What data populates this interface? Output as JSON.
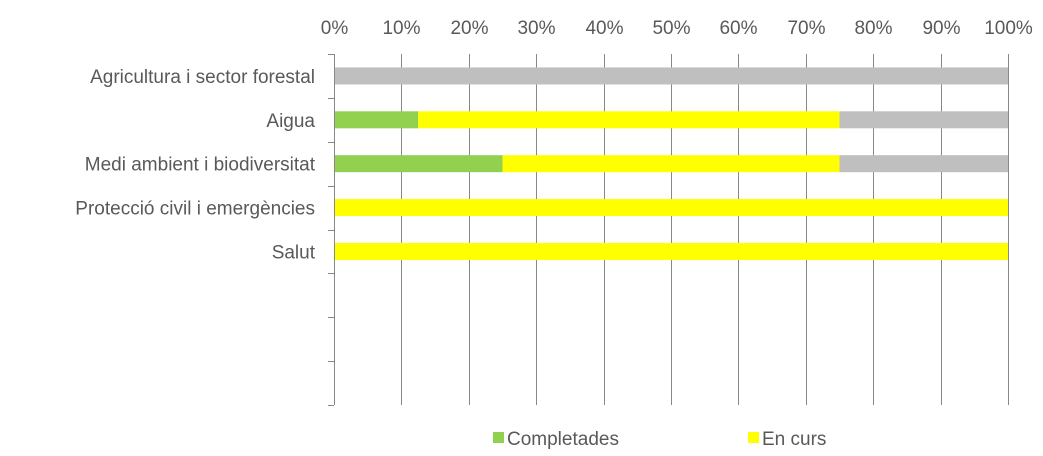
{
  "chart_data": {
    "type": "bar",
    "orientation": "horizontal",
    "stacked": "percent",
    "title": "",
    "xlabel": "",
    "ylabel": "",
    "xlim": [
      0,
      100
    ],
    "x_tick_labels": [
      "0%",
      "10%",
      "20%",
      "30%",
      "40%",
      "50%",
      "60%",
      "70%",
      "80%",
      "90%",
      "100%"
    ],
    "categories": [
      "Agricultura i sector forestal",
      "Aigua",
      "Medi ambient i biodiversitat",
      "Protecció civil i emergències",
      "Salut",
      "",
      "",
      ""
    ],
    "series": [
      {
        "name": "Completades",
        "color": "#92D050",
        "values": [
          0,
          12.5,
          25,
          0,
          0,
          null,
          null,
          null
        ]
      },
      {
        "name": "En curs",
        "color": "#FFFF00",
        "values": [
          0,
          62.5,
          50,
          100,
          100,
          null,
          null,
          null
        ]
      },
      {
        "color": "#BFBFBF",
        "values": [
          100,
          25,
          25,
          0,
          0,
          null,
          null,
          null
        ]
      }
    ],
    "grid": true,
    "legend_position": "bottom",
    "legend_entries": [
      "Completades",
      "En curs"
    ]
  }
}
